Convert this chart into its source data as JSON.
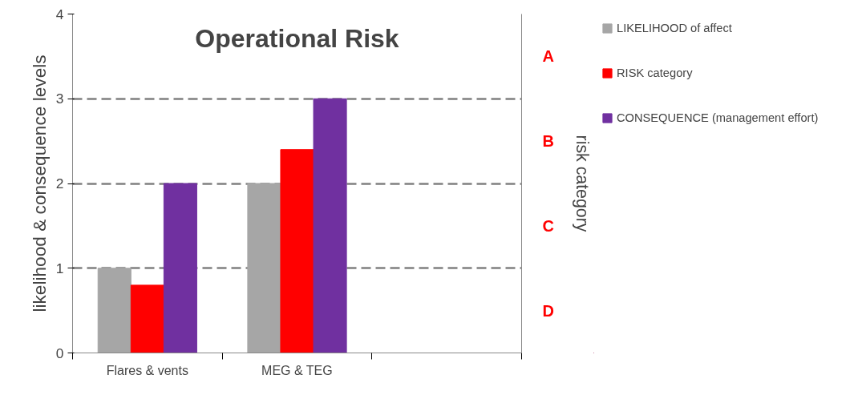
{
  "chart_data": {
    "type": "bar",
    "title": "Operational Risk",
    "ylabel": "likelihood & consequence levels",
    "y2label": "risk category",
    "categories": [
      "Flares & vents",
      "MEG & TEG",
      null
    ],
    "series": [
      {
        "name": "LIKELIHOOD of affect",
        "color": "#a6a6a6",
        "values": [
          1,
          2,
          null
        ]
      },
      {
        "name": "RISK category",
        "color": "#ff0000",
        "values": [
          0.8,
          2.4,
          null
        ]
      },
      {
        "name": "CONSEQUENCE (management effort)",
        "color": "#7030a0",
        "values": [
          2,
          3,
          null
        ]
      }
    ],
    "ylim": [
      0,
      4
    ],
    "yticks": [
      0,
      1,
      2,
      3,
      4
    ],
    "annotations": [
      "A",
      "B",
      "C",
      "D"
    ],
    "grid": "y",
    "legend": "right"
  }
}
